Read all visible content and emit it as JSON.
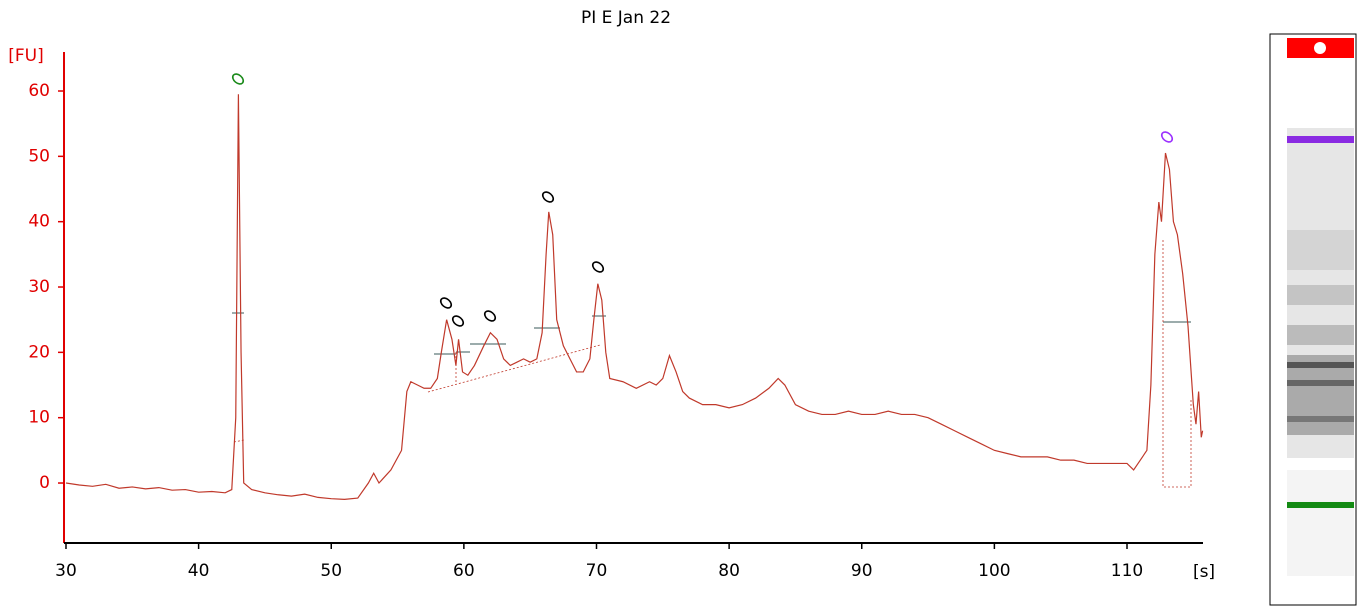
{
  "chart_data": {
    "type": "line",
    "title": "PI E Jan 22",
    "ylabel": "[FU]",
    "xlabel": "[s]",
    "x": [
      30,
      31,
      32,
      33,
      34,
      35,
      36,
      37,
      38,
      39,
      40,
      41,
      42,
      42.5,
      42.8,
      43.0,
      43.2,
      43.4,
      44,
      45,
      46,
      47,
      48,
      49,
      50,
      51,
      52,
      52.8,
      53.2,
      53.6,
      54.5,
      55.3,
      55.7,
      56,
      56.5,
      57,
      57.5,
      58,
      58.3,
      58.7,
      59.1,
      59.4,
      59.6,
      59.9,
      60.3,
      60.8,
      61.5,
      62,
      62.5,
      63,
      63.5,
      64,
      64.5,
      65,
      65.5,
      65.9,
      66.2,
      66.4,
      66.7,
      67,
      67.5,
      68,
      68.5,
      69,
      69.5,
      69.8,
      70.1,
      70.4,
      70.7,
      71,
      72,
      73,
      74,
      74.5,
      75,
      75.5,
      76,
      76.5,
      77,
      78,
      79,
      80,
      81,
      82,
      83,
      83.7,
      84.2,
      85,
      86,
      87,
      88,
      89,
      90,
      91,
      92,
      93,
      94,
      95,
      96,
      97,
      98,
      99,
      100,
      101,
      102,
      103,
      104,
      105,
      106,
      107,
      108,
      109,
      110,
      110.5,
      111,
      111.5,
      111.8,
      112.1,
      112.4,
      112.6,
      112.9,
      113.2,
      113.5,
      113.8,
      114.2,
      114.6,
      115,
      115.2,
      115.4,
      115.6,
      115.7
    ],
    "series": [
      {
        "color": "#c0392b",
        "values": [
          0,
          -0.3,
          -0.5,
          -0.2,
          -0.8,
          -0.6,
          -0.9,
          -0.7,
          -1.1,
          -1.0,
          -1.4,
          -1.3,
          -1.5,
          -1,
          10,
          59.5,
          20,
          0,
          -1,
          -1.5,
          -1.8,
          -2.0,
          -1.7,
          -2.2,
          -2.4,
          -2.5,
          -2.3,
          0,
          1.5,
          0,
          2,
          5,
          14,
          15.5,
          15,
          14.5,
          14.5,
          16,
          20,
          25,
          22,
          18,
          22,
          17,
          16.5,
          18,
          21,
          23,
          22,
          19,
          18,
          18.5,
          19,
          18.5,
          19,
          23,
          35,
          41.5,
          38,
          25,
          21,
          19,
          17,
          17,
          19,
          25,
          30.5,
          28,
          20,
          16,
          15.5,
          14.5,
          15.5,
          15,
          16,
          19.5,
          17,
          14,
          13,
          12,
          12,
          11.5,
          12,
          13,
          14.5,
          16,
          15,
          12,
          11,
          10.5,
          10.5,
          11,
          10.5,
          10.5,
          11,
          10.5,
          10.5,
          10,
          9,
          8,
          7,
          6,
          5,
          4.5,
          4,
          4,
          4,
          3.5,
          3.5,
          3,
          3,
          3,
          3,
          2,
          3.5,
          5,
          15,
          35,
          43,
          40,
          50.5,
          48,
          40,
          38,
          32,
          24,
          12,
          9,
          14,
          7,
          8
        ]
      }
    ],
    "xlim": [
      29.85,
      115.73
    ],
    "ylim": [
      -9.18,
      65.97
    ],
    "xticks": [
      30,
      40,
      50,
      60,
      70,
      80,
      90,
      100,
      110
    ],
    "yticks": [
      0,
      10,
      20,
      30,
      40,
      50,
      60
    ]
  }
}
